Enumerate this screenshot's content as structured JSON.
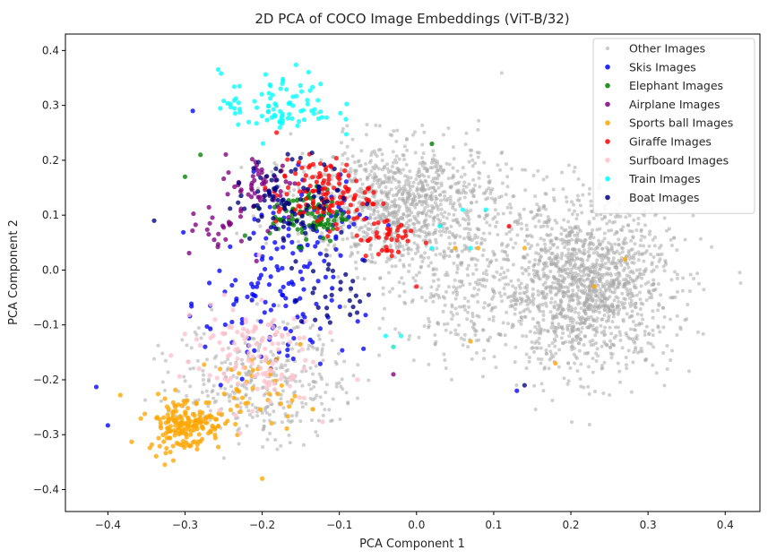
{
  "chart_data": {
    "type": "scatter",
    "title": "2D PCA of COCO Image Embeddings (ViT-B/32)",
    "xlabel": "PCA Component 1",
    "ylabel": "PCA Component 2",
    "xlim": [
      -0.455,
      0.445
    ],
    "ylim": [
      -0.44,
      0.43
    ],
    "xticks": [
      -0.4,
      -0.3,
      -0.2,
      -0.1,
      0.0,
      0.1,
      0.2,
      0.3,
      0.4
    ],
    "xtick_labels": [
      "−0.4",
      "−0.3",
      "−0.2",
      "−0.1",
      "0.0",
      "0.1",
      "0.2",
      "0.3",
      "0.4"
    ],
    "yticks": [
      -0.4,
      -0.3,
      -0.2,
      -0.1,
      0.0,
      0.1,
      0.2,
      0.3,
      0.4
    ],
    "ytick_labels": [
      "−0.4",
      "−0.3",
      "−0.2",
      "−0.1",
      "0.0",
      "0.1",
      "0.2",
      "0.3",
      "0.4"
    ],
    "grid": false,
    "legend_position": "top-right",
    "series": [
      {
        "name": "Other Images",
        "color": "#a9a9a9",
        "clusters": [
          {
            "center": [
              0.22,
              -0.03
            ],
            "spread": [
              0.09,
              0.12
            ],
            "count": 1500
          },
          {
            "center": [
              -0.02,
              0.12
            ],
            "spread": [
              0.11,
              0.09
            ],
            "count": 1100
          },
          {
            "center": [
              -0.2,
              -0.2
            ],
            "spread": [
              0.09,
              0.09
            ],
            "count": 350
          },
          {
            "center": [
              0.06,
              -0.05
            ],
            "spread": [
              0.08,
              0.1
            ],
            "count": 250
          }
        ]
      },
      {
        "name": "Skis Images",
        "color": "#0000ff",
        "clusters": [
          {
            "center": [
              -0.19,
              -0.06
            ],
            "spread": [
              0.07,
              0.13
            ],
            "count": 130
          },
          {
            "center": [
              -0.12,
              0.1
            ],
            "spread": [
              0.06,
              0.07
            ],
            "count": 40
          }
        ],
        "points": [
          [
            -0.415,
            -0.213
          ],
          [
            -0.4,
            -0.283
          ],
          [
            -0.29,
            0.29
          ],
          [
            0.13,
            -0.22
          ]
        ]
      },
      {
        "name": "Elephant Images",
        "color": "#008000",
        "clusters": [
          {
            "center": [
              -0.14,
              0.1
            ],
            "spread": [
              0.04,
              0.04
            ],
            "count": 90
          }
        ],
        "points": [
          [
            -0.3,
            0.17
          ],
          [
            0.02,
            0.23
          ],
          [
            -0.28,
            0.21
          ]
        ]
      },
      {
        "name": "Airplane Images",
        "color": "#800080",
        "clusters": [
          {
            "center": [
              -0.2,
              0.15
            ],
            "spread": [
              0.04,
              0.05
            ],
            "count": 60
          },
          {
            "center": [
              -0.26,
              0.07
            ],
            "spread": [
              0.03,
              0.04
            ],
            "count": 20
          }
        ],
        "points": [
          [
            -0.03,
            -0.19
          ]
        ]
      },
      {
        "name": "Sports ball Images",
        "color": "#ffa500",
        "clusters": [
          {
            "center": [
              -0.3,
              -0.28
            ],
            "spread": [
              0.04,
              0.04
            ],
            "count": 180
          },
          {
            "center": [
              -0.2,
              -0.22
            ],
            "spread": [
              0.05,
              0.05
            ],
            "count": 40
          }
        ],
        "points": [
          [
            0.27,
            0.02
          ],
          [
            0.18,
            -0.17
          ],
          [
            0.23,
            -0.03
          ],
          [
            0.14,
            0.04
          ],
          [
            0.08,
            0.04
          ],
          [
            0.05,
            0.04
          ],
          [
            0.07,
            -0.13
          ],
          [
            -0.2,
            -0.38
          ],
          [
            -0.03,
            -0.14
          ]
        ]
      },
      {
        "name": "Giraffe Images",
        "color": "#ff0000",
        "clusters": [
          {
            "center": [
              -0.12,
              0.14
            ],
            "spread": [
              0.05,
              0.05
            ],
            "count": 120
          },
          {
            "center": [
              -0.04,
              0.06
            ],
            "spread": [
              0.03,
              0.04
            ],
            "count": 40
          }
        ],
        "points": [
          [
            0.12,
            0.08
          ],
          [
            -0.0,
            -0.03
          ]
        ]
      },
      {
        "name": "Surfboard Images",
        "color": "#ffc0cb",
        "clusters": [
          {
            "center": [
              -0.22,
              -0.15
            ],
            "spread": [
              0.07,
              0.08
            ],
            "count": 120
          }
        ]
      },
      {
        "name": "Train Images",
        "color": "#00ffff",
        "clusters": [
          {
            "center": [
              -0.18,
              0.3
            ],
            "spread": [
              0.06,
              0.05
            ],
            "count": 90
          }
        ],
        "points": [
          [
            0.06,
            0.11
          ],
          [
            0.02,
            0.04
          ],
          [
            0.03,
            0.08
          ],
          [
            0.09,
            0.11
          ],
          [
            0.07,
            0.04
          ],
          [
            -0.03,
            -0.14
          ],
          [
            -0.04,
            -0.12
          ],
          [
            -0.02,
            -0.12
          ]
        ]
      },
      {
        "name": "Boat Images",
        "color": "#000080",
        "clusters": [
          {
            "center": [
              -0.16,
              0.13
            ],
            "spread": [
              0.06,
              0.06
            ],
            "count": 90
          },
          {
            "center": [
              -0.1,
              -0.04
            ],
            "spread": [
              0.05,
              0.05
            ],
            "count": 30
          }
        ],
        "points": [
          [
            -0.34,
            0.09
          ],
          [
            0.14,
            -0.21
          ]
        ]
      }
    ]
  }
}
